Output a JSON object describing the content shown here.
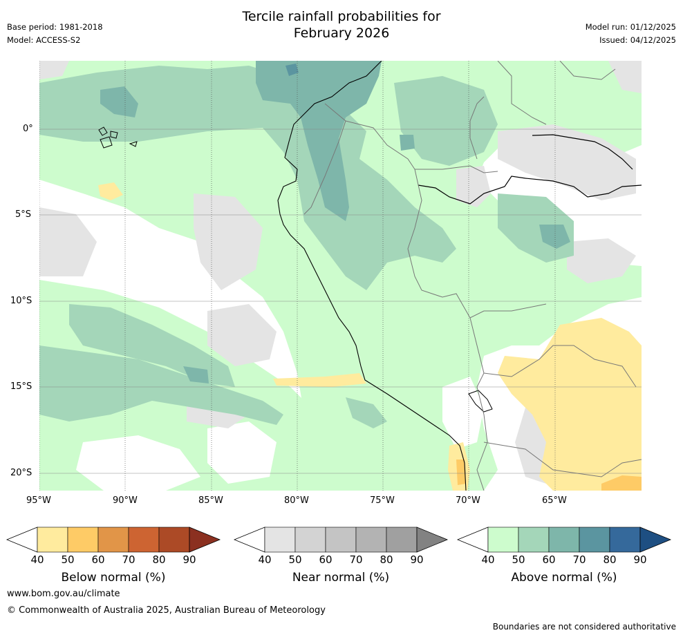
{
  "header": {
    "title_line1": "Tercile rainfall probabilities for",
    "title_line2": "February 2026",
    "base_period": "Base period: 1981-2018",
    "model": "Model: ACCESS-S2",
    "model_run": "Model run: 01/12/2025",
    "issued": "Issued: 04/12/2025"
  },
  "map": {
    "lon_ticks": [
      "95°W",
      "90°W",
      "85°W",
      "80°W",
      "75°W",
      "70°W",
      "65°W"
    ],
    "lat_ticks": [
      "0°",
      "5°S",
      "10°S",
      "15°S",
      "20°S"
    ],
    "colors": {
      "ocean_bg": "#ffffff",
      "near_normal_40": "#e4e4e4",
      "above_40": "#cdfccd",
      "above_50": "#a4d6b9",
      "above_60": "#7eb6aa",
      "above_70": "#5b95a0",
      "below_40": "#ffeb9e",
      "below_50": "#fecb66"
    }
  },
  "colorbars": [
    {
      "label": "Below normal (%)",
      "ticks": [
        "40",
        "50",
        "60",
        "70",
        "80",
        "90"
      ],
      "colors": [
        "#ffffff",
        "#ffeb9e",
        "#fecb66",
        "#e19548",
        "#cd6432",
        "#ac4a26",
        "#8b3020"
      ]
    },
    {
      "label": "Near normal (%)",
      "ticks": [
        "40",
        "50",
        "60",
        "70",
        "80",
        "90"
      ],
      "colors": [
        "#ffffff",
        "#e4e4e4",
        "#d3d3d3",
        "#c4c4c4",
        "#b3b3b3",
        "#a0a0a0",
        "#828282"
      ]
    },
    {
      "label": "Above normal (%)",
      "ticks": [
        "40",
        "50",
        "60",
        "70",
        "80",
        "90"
      ],
      "colors": [
        "#ffffff",
        "#cdfccd",
        "#a4d6b9",
        "#7eb6aa",
        "#5b95a0",
        "#35699b",
        "#1e4f82"
      ]
    }
  ],
  "footer": {
    "url": "www.bom.gov.au/climate",
    "copyright": "© Commonwealth of Australia 2025, Australian Bureau of Meteorology",
    "disclaimer": "Boundaries are not considered authoritative"
  }
}
